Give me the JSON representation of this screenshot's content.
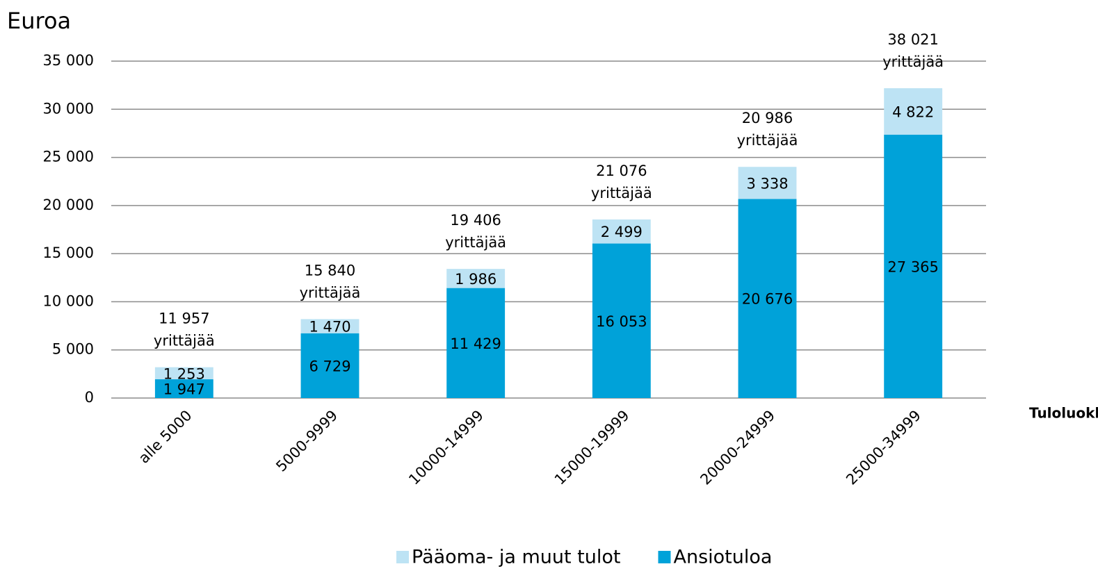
{
  "chart_data": {
    "type": "stacked_bar",
    "y_label": "Euroa",
    "x_label": "Tuloluokka",
    "categories": [
      "alle 5000",
      "5000-9999",
      "10000-14999",
      "15000-19999",
      "20000-24999",
      "25000-34999"
    ],
    "series": [
      {
        "name": "Ansiotuloa",
        "color": "#00a2d9",
        "values": [
          1947,
          6729,
          11429,
          16053,
          20676,
          27365
        ],
        "value_labels": [
          "1 947",
          "6 729",
          "11 429",
          "16 053",
          "20 676",
          "27 365"
        ]
      },
      {
        "name": "Pääoma- ja muut tulot",
        "color": "#bde3f4",
        "values": [
          1253,
          1470,
          1986,
          2499,
          3338,
          4822
        ],
        "value_labels": [
          "1 253",
          "1 470",
          "1 986",
          "2 499",
          "3 338",
          "4 822"
        ]
      }
    ],
    "bar_labels": [
      [
        "11 957",
        "yrittäjää"
      ],
      [
        "15 840",
        "yrittäjää"
      ],
      [
        "19 406",
        "yrittäjää"
      ],
      [
        "21 076",
        "yrittäjää"
      ],
      [
        "20 986",
        "yrittäjää"
      ],
      [
        "38 021",
        "yrittäjää"
      ]
    ],
    "ylim": [
      0,
      35000
    ],
    "yticks": [
      0,
      {
        "value": 5000,
        "label": "5 000"
      },
      {
        "value": 10000,
        "label": "10 000"
      },
      {
        "value": 15000,
        "label": "15 000"
      },
      {
        "value": 20000,
        "label": "20 000"
      },
      {
        "value": 25000,
        "label": "25 000"
      },
      {
        "value": 30000,
        "label": "30 000"
      },
      {
        "value": 35000,
        "label": "35 000"
      }
    ],
    "grid": true,
    "legend": "bottom"
  }
}
